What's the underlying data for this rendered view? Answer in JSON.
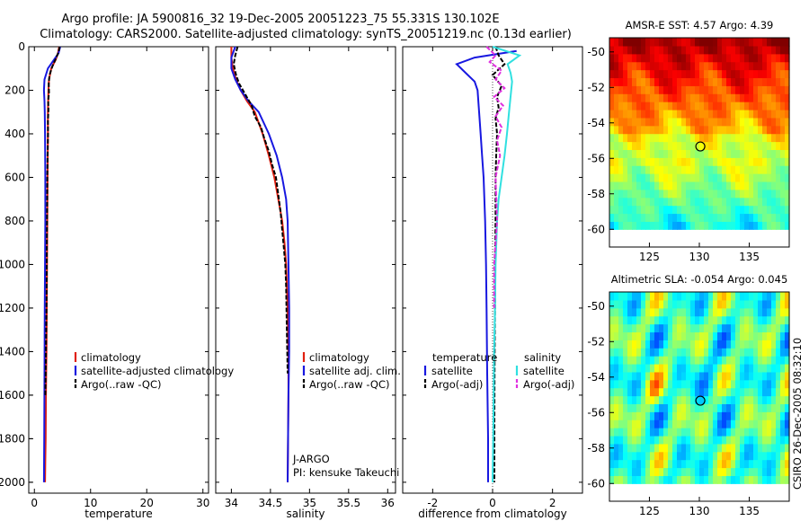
{
  "title_line1": "Argo profile: JA 5900816_32 19-Dec-2005 20051223_75 55.331S 130.102E",
  "title_line2": "Climatology: CARS2000. Satellite-adjusted climatology: synTS_20051219.nc (0.13d earlier)",
  "footer": "CSIRO 26-Dec-2005 08:32:10",
  "colors": {
    "climatology": "#e02010",
    "satellite": "#1818e0",
    "argo": "#000000",
    "sat_diff": "#30e0e0",
    "argo_adj": "#e030e0"
  },
  "chart_data": [
    {
      "id": "temperature",
      "type": "line",
      "xlabel": "temperature",
      "xlim": [
        -1,
        31
      ],
      "ylim": [
        0,
        2050
      ],
      "xticks": [
        0,
        10,
        20,
        30
      ],
      "xtick_labels": [
        "0",
        "10",
        "20",
        "30"
      ],
      "yticks": [
        0,
        200,
        400,
        600,
        800,
        1000,
        1200,
        1400,
        1600,
        1800,
        2000
      ],
      "ytick_labels": [
        "0",
        "200",
        "400",
        "600",
        "800",
        "1000",
        "1200",
        "1400",
        "1600",
        "1800",
        "2000"
      ],
      "legend": [
        "climatology",
        "satellite-adjusted climatology",
        "Argo(..raw -QC)"
      ],
      "series": [
        {
          "name": "climatology",
          "color_key": "climatology",
          "x": [
            4.4,
            4.2,
            3.8,
            3.0,
            2.6,
            2.5,
            2.4,
            2.4,
            2.35,
            2.3,
            2.25,
            2.2,
            2.15,
            2.1,
            2.05,
            2.0,
            1.95,
            1.9
          ],
          "y": [
            0,
            30,
            60,
            100,
            150,
            200,
            300,
            400,
            600,
            800,
            1000,
            1200,
            1400,
            1500,
            1600,
            1800,
            1900,
            2000
          ]
        },
        {
          "name": "satellite-adjusted climatology",
          "color_key": "satellite",
          "x": [
            4.6,
            4.3,
            3.5,
            2.4,
            1.8,
            1.7,
            1.8,
            1.85,
            1.9,
            1.95,
            1.95,
            1.9,
            1.85,
            1.8,
            1.75,
            1.7
          ],
          "y": [
            0,
            30,
            60,
            100,
            150,
            200,
            250,
            300,
            400,
            600,
            800,
            1000,
            1200,
            1500,
            1800,
            2000
          ]
        },
        {
          "name": "Argo(..raw -QC)",
          "color_key": "argo",
          "x": [
            4.5,
            4.3,
            3.9,
            3.2,
            2.7,
            2.55,
            2.6,
            2.45,
            2.5,
            2.4,
            2.42,
            2.35,
            2.3,
            2.28,
            2.25,
            2.22,
            2.2,
            2.18,
            2.15,
            2.1,
            2.05,
            2.0,
            1.95
          ],
          "y": [
            0,
            25,
            50,
            90,
            130,
            170,
            210,
            250,
            290,
            340,
            400,
            500,
            600,
            700,
            800,
            900,
            1000,
            1100,
            1200,
            1300,
            1400,
            1500,
            1600
          ]
        }
      ]
    },
    {
      "id": "salinity",
      "type": "line",
      "xlabel": "salinity",
      "xlim": [
        33.8,
        36.1
      ],
      "ylim": [
        0,
        2050
      ],
      "xticks": [
        34,
        34.5,
        35,
        35.5,
        36
      ],
      "xtick_labels": [
        "34",
        "34.5",
        "35",
        "35.5",
        "36"
      ],
      "legend": [
        "climatology",
        "satellite adj. clim.",
        "Argo(..raw -QC)"
      ],
      "annotation": [
        "J-ARGO",
        "PI: kensuke Takeuchi"
      ],
      "series": [
        {
          "name": "climatology",
          "color_key": "climatology",
          "x": [
            34.0,
            34.0,
            34.02,
            34.06,
            34.12,
            34.2,
            34.3,
            34.4,
            34.48,
            34.55,
            34.6,
            34.65,
            34.68,
            34.7,
            34.72,
            34.73,
            34.73,
            34.72
          ],
          "y": [
            0,
            50,
            100,
            150,
            200,
            250,
            300,
            400,
            500,
            600,
            700,
            800,
            900,
            1000,
            1200,
            1400,
            1600,
            2000
          ]
        },
        {
          "name": "satellite adj. clim.",
          "color_key": "satellite",
          "x": [
            34.05,
            34.0,
            34.0,
            34.05,
            34.12,
            34.22,
            34.35,
            34.48,
            34.58,
            34.65,
            34.7,
            34.72,
            34.73,
            34.74,
            34.74,
            34.73,
            34.72
          ],
          "y": [
            0,
            50,
            100,
            150,
            200,
            250,
            300,
            400,
            500,
            600,
            700,
            800,
            1000,
            1200,
            1400,
            1600,
            2000
          ]
        },
        {
          "name": "Argo(..raw -QC)",
          "color_key": "argo",
          "x": [
            34.08,
            34.05,
            34.03,
            34.06,
            34.1,
            34.18,
            34.26,
            34.3,
            34.38,
            34.42,
            34.48,
            34.52,
            34.57,
            34.6,
            34.63,
            34.65,
            34.67,
            34.69,
            34.7,
            34.71,
            34.72
          ],
          "y": [
            0,
            40,
            80,
            130,
            170,
            220,
            270,
            320,
            370,
            420,
            480,
            540,
            600,
            680,
            760,
            840,
            920,
            1000,
            1100,
            1300,
            1500
          ]
        }
      ]
    },
    {
      "id": "difference",
      "type": "line",
      "xlabel": "difference from climatology",
      "xlim": [
        -3,
        3
      ],
      "ylim": [
        0,
        2050
      ],
      "xticks": [
        -2,
        0,
        2
      ],
      "xtick_labels": [
        "-2",
        "0",
        "2"
      ],
      "legend_left_title": "temperature",
      "legend_left": [
        "satellite",
        "Argo(-adj)"
      ],
      "legend_right_title": "salinity",
      "legend_right": [
        "satellite",
        "Argo(-adj)"
      ],
      "series": [
        {
          "name": "satellite temperature",
          "color_key": "satellite",
          "x": [
            0.8,
            -0.6,
            -1.2,
            -0.9,
            -0.6,
            -0.5,
            -0.45,
            -0.4,
            -0.35,
            -0.3,
            -0.25,
            -0.22,
            -0.2,
            -0.18,
            -0.15,
            -0.15
          ],
          "y": [
            20,
            50,
            80,
            120,
            160,
            200,
            300,
            400,
            500,
            600,
            800,
            1000,
            1200,
            1500,
            1800,
            2000
          ]
        },
        {
          "name": "Argo(-adj) temperature",
          "color_key": "argo",
          "x": [
            0.1,
            0.2,
            0.4,
            0.0,
            0.3,
            0.15,
            0.2,
            0.1,
            0.15,
            0.12,
            0.1,
            0.1,
            0.08,
            0.08,
            0.07,
            0.06,
            0.06
          ],
          "y": [
            0,
            40,
            80,
            130,
            180,
            230,
            280,
            330,
            400,
            500,
            600,
            800,
            1000,
            1200,
            1400,
            1700,
            2000
          ]
        },
        {
          "name": "satellite salinity",
          "color_key": "sat_diff",
          "x": [
            0.0,
            0.9,
            0.5,
            0.6,
            0.65,
            0.62,
            0.55,
            0.48,
            0.4,
            0.3,
            0.2,
            0.15,
            0.1,
            0.08,
            0.05,
            0.03,
            0.0
          ],
          "y": [
            0,
            40,
            80,
            120,
            160,
            200,
            300,
            400,
            500,
            600,
            700,
            800,
            1000,
            1200,
            1400,
            1700,
            2000
          ]
        },
        {
          "name": "Argo(-adj) salinity",
          "color_key": "argo_adj",
          "x": [
            -0.2,
            0.1,
            -0.1,
            0.3,
            0.1,
            0.4,
            0.05,
            0.35,
            0.1,
            0.3,
            0.15,
            0.25,
            0.1,
            0.15,
            0.05,
            0.05
          ],
          "y": [
            0,
            40,
            70,
            110,
            150,
            190,
            230,
            270,
            320,
            370,
            430,
            500,
            600,
            800,
            1000,
            1200
          ]
        }
      ]
    },
    {
      "id": "sst_map",
      "type": "heatmap",
      "title": "AMSR-E SST: 4.57 Argo: 4.39",
      "xlim": [
        121,
        139
      ],
      "ylim": [
        -61,
        -49.2
      ],
      "data_ylim": [
        -60,
        -49.2
      ],
      "xticks": [
        125,
        130,
        135
      ],
      "xtick_labels": [
        "125",
        "130",
        "135"
      ],
      "yticks": [
        -50,
        -52,
        -54,
        -56,
        -58,
        -60
      ],
      "ytick_labels": [
        "-50",
        "-52",
        "-54",
        "-56",
        "-58",
        "-60"
      ],
      "marker": [
        130.1,
        -55.33
      ]
    },
    {
      "id": "sla_map",
      "type": "heatmap",
      "title": "Altimetric SLA: -0.054 Argo: 0.045",
      "xlim": [
        121,
        139
      ],
      "ylim": [
        -61,
        -49.2
      ],
      "data_ylim": [
        -60,
        -49.2
      ],
      "xticks": [
        125,
        130,
        135
      ],
      "xtick_labels": [
        "125",
        "130",
        "135"
      ],
      "yticks": [
        -50,
        -52,
        -54,
        -56,
        -58,
        -60
      ],
      "ytick_labels": [
        "-50",
        "-52",
        "-54",
        "-56",
        "-58",
        "-60"
      ],
      "marker": [
        130.1,
        -55.33
      ]
    }
  ]
}
